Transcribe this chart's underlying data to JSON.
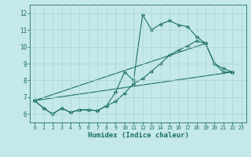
{
  "xlabel": "Humidex (Indice chaleur)",
  "xlim": [
    -0.5,
    23.5
  ],
  "ylim": [
    5.5,
    12.5
  ],
  "xticks": [
    0,
    1,
    2,
    3,
    4,
    5,
    6,
    7,
    8,
    9,
    10,
    11,
    12,
    13,
    14,
    15,
    16,
    17,
    18,
    19,
    20,
    21,
    22,
    23
  ],
  "yticks": [
    6,
    7,
    8,
    9,
    10,
    11,
    12
  ],
  "background_color": "#c5e8e8",
  "grid_color": "#aad4d4",
  "line_color": "#1a7068",
  "curve1_x": [
    0,
    1,
    2,
    3,
    4,
    5,
    6,
    7,
    8,
    9,
    10,
    11,
    12,
    13,
    14,
    15,
    16,
    17,
    18,
    19,
    20,
    21,
    22
  ],
  "curve1_y": [
    6.8,
    6.35,
    6.0,
    6.35,
    6.1,
    6.25,
    6.25,
    6.2,
    6.5,
    7.3,
    8.5,
    8.0,
    11.9,
    11.0,
    11.35,
    11.55,
    11.3,
    11.2,
    10.6,
    10.2,
    9.0,
    8.5,
    8.5
  ],
  "curve2_x": [
    0,
    1,
    2,
    3,
    4,
    5,
    6,
    7,
    8,
    9,
    10,
    11,
    12,
    13,
    14,
    15,
    16,
    17,
    18,
    19,
    20,
    21,
    22
  ],
  "curve2_y": [
    6.8,
    6.35,
    6.0,
    6.35,
    6.1,
    6.25,
    6.25,
    6.2,
    6.5,
    6.75,
    7.25,
    7.8,
    8.1,
    8.55,
    9.0,
    9.5,
    9.8,
    10.05,
    10.35,
    10.2,
    9.0,
    8.7,
    8.5
  ],
  "line1_x": [
    0,
    22
  ],
  "line1_y": [
    6.8,
    8.5
  ],
  "line2_x": [
    0,
    19
  ],
  "line2_y": [
    6.8,
    10.2
  ]
}
